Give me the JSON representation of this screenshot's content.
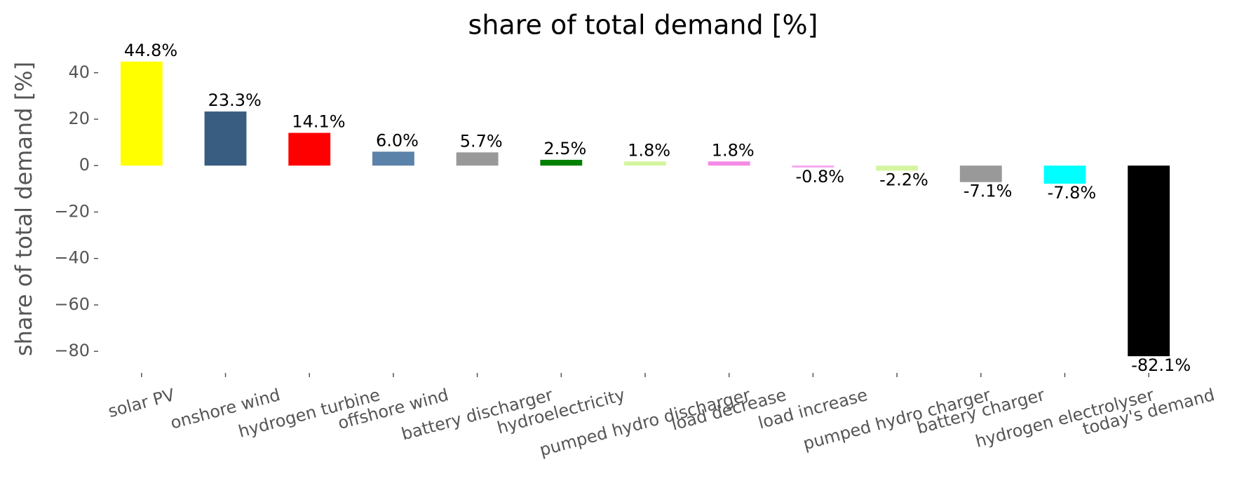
{
  "chart_data": {
    "type": "bar",
    "title": "share of total demand [%]",
    "ylabel": "share of total demand [%]",
    "categories": [
      "solar PV",
      "onshore wind",
      "hydrogen turbine",
      "offshore wind",
      "battery discharger",
      "hydroelectricity",
      "pumped hydro discharger",
      "load decrease",
      "load increase",
      "pumped hydro charger",
      "battery charger",
      "hydrogen electrolyser",
      "today's demand"
    ],
    "values": [
      44.8,
      23.3,
      14.1,
      6.0,
      5.7,
      2.5,
      1.8,
      1.8,
      -0.8,
      -2.2,
      -7.1,
      -7.8,
      -82.1
    ],
    "value_labels": [
      "44.8%",
      "23.3%",
      "14.1%",
      "6.0%",
      "5.7%",
      "2.5%",
      "1.8%",
      "1.8%",
      "-0.8%",
      "-2.2%",
      "-7.1%",
      "-7.8%",
      "-82.1%"
    ],
    "colors": [
      "#ffff00",
      "#385d80",
      "#ff0000",
      "#5b82a8",
      "#999999",
      "#008000",
      "#d4f5a0",
      "#f58ae6",
      "#f5a0ee",
      "#d4f5a0",
      "#999999",
      "#00ffff",
      "#000000"
    ],
    "ylim": [
      -88.4,
      51.1
    ],
    "yticks": [
      {
        "value": -80,
        "label": "−80"
      },
      {
        "value": -60,
        "label": "−60"
      },
      {
        "value": -40,
        "label": "−40"
      },
      {
        "value": -20,
        "label": "−20"
      },
      0,
      20,
      40
    ],
    "grid": false
  }
}
